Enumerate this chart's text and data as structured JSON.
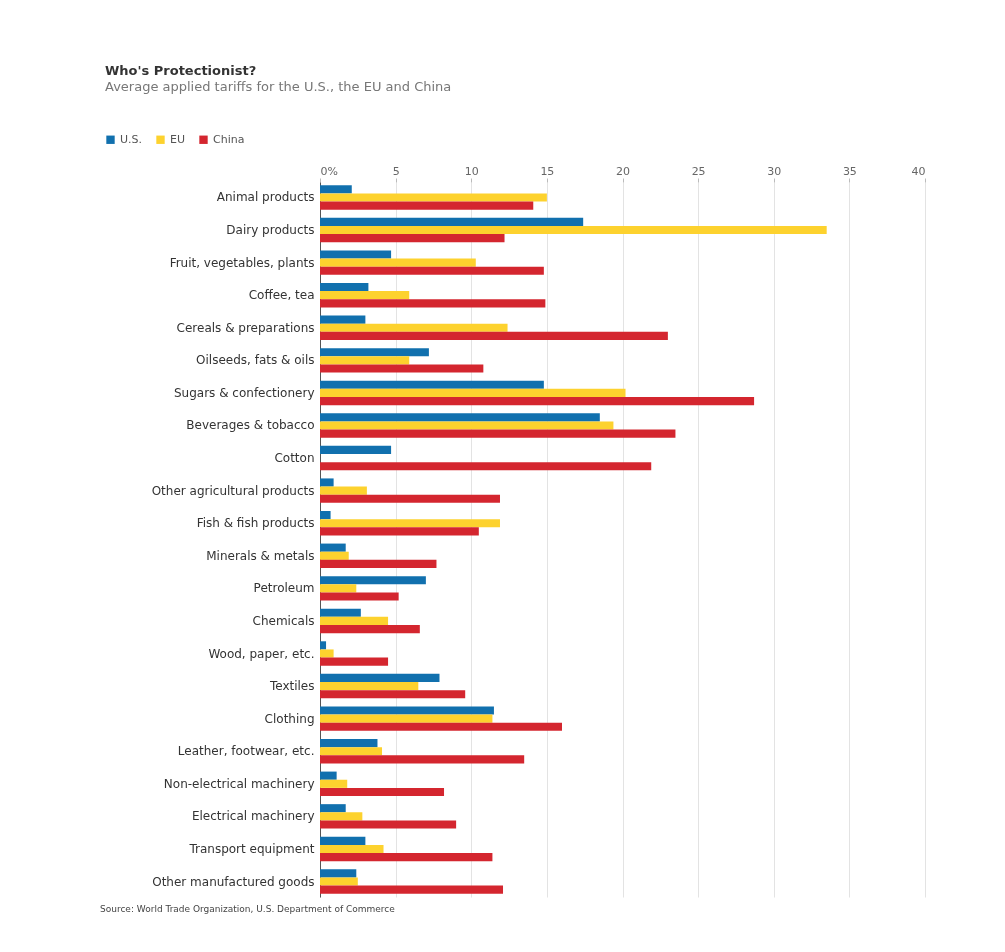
{
  "chart_data": {
    "type": "bar",
    "orientation": "horizontal",
    "title": "Who's Protectionist?",
    "subtitle": "Average applied tariffs for the U.S., the EU and China",
    "categories": [
      "Animal products",
      "Dairy products",
      "Fruit, vegetables, plants",
      "Coffee, tea",
      "Cereals & preparations",
      "Oilseeds, fats & oils",
      "Sugars & confectionery",
      "Beverages & tobacco",
      "Cotton",
      "Other agricultural products",
      "Fish & fish products",
      "Minerals & metals",
      "Petroleum",
      "Chemicals",
      "Wood, paper, etc.",
      "Textiles",
      "Clothing",
      "Leather, footwear, etc.",
      "Non-electrical machinery",
      "Electrical machinery",
      "Transport equipment",
      "Other manufactured goods"
    ],
    "series": [
      {
        "name": "U.S.",
        "color": "#1170ae",
        "values": [
          2.1,
          17.4,
          4.7,
          3.2,
          3.0,
          7.2,
          14.8,
          18.5,
          4.7,
          0.9,
          0.7,
          1.7,
          7.0,
          2.7,
          0.4,
          7.9,
          11.5,
          3.8,
          1.1,
          1.7,
          3.0,
          2.4
        ]
      },
      {
        "name": "EU",
        "color": "#fdd22e",
        "values": [
          15.0,
          33.5,
          10.3,
          5.9,
          12.4,
          5.9,
          20.2,
          19.4,
          0,
          3.1,
          11.9,
          1.9,
          2.4,
          4.5,
          0.9,
          6.5,
          11.4,
          4.1,
          1.8,
          2.8,
          4.2,
          2.5
        ]
      },
      {
        "name": "China",
        "color": "#d4262f",
        "values": [
          14.1,
          12.2,
          14.8,
          14.9,
          23.0,
          10.8,
          28.7,
          23.5,
          21.9,
          11.9,
          10.5,
          7.7,
          5.2,
          6.6,
          4.5,
          9.6,
          16.0,
          13.5,
          8.2,
          9.0,
          11.4,
          12.1
        ]
      }
    ],
    "xlim": [
      0,
      40
    ],
    "xticks": [
      {
        "value": 0,
        "label": "0%"
      },
      5,
      10,
      15,
      20,
      25,
      30,
      35,
      40
    ],
    "grid": "x",
    "legend": "top left",
    "annotations": [
      "Source: World Trade Organization, U.S. Department of Commerce"
    ]
  }
}
